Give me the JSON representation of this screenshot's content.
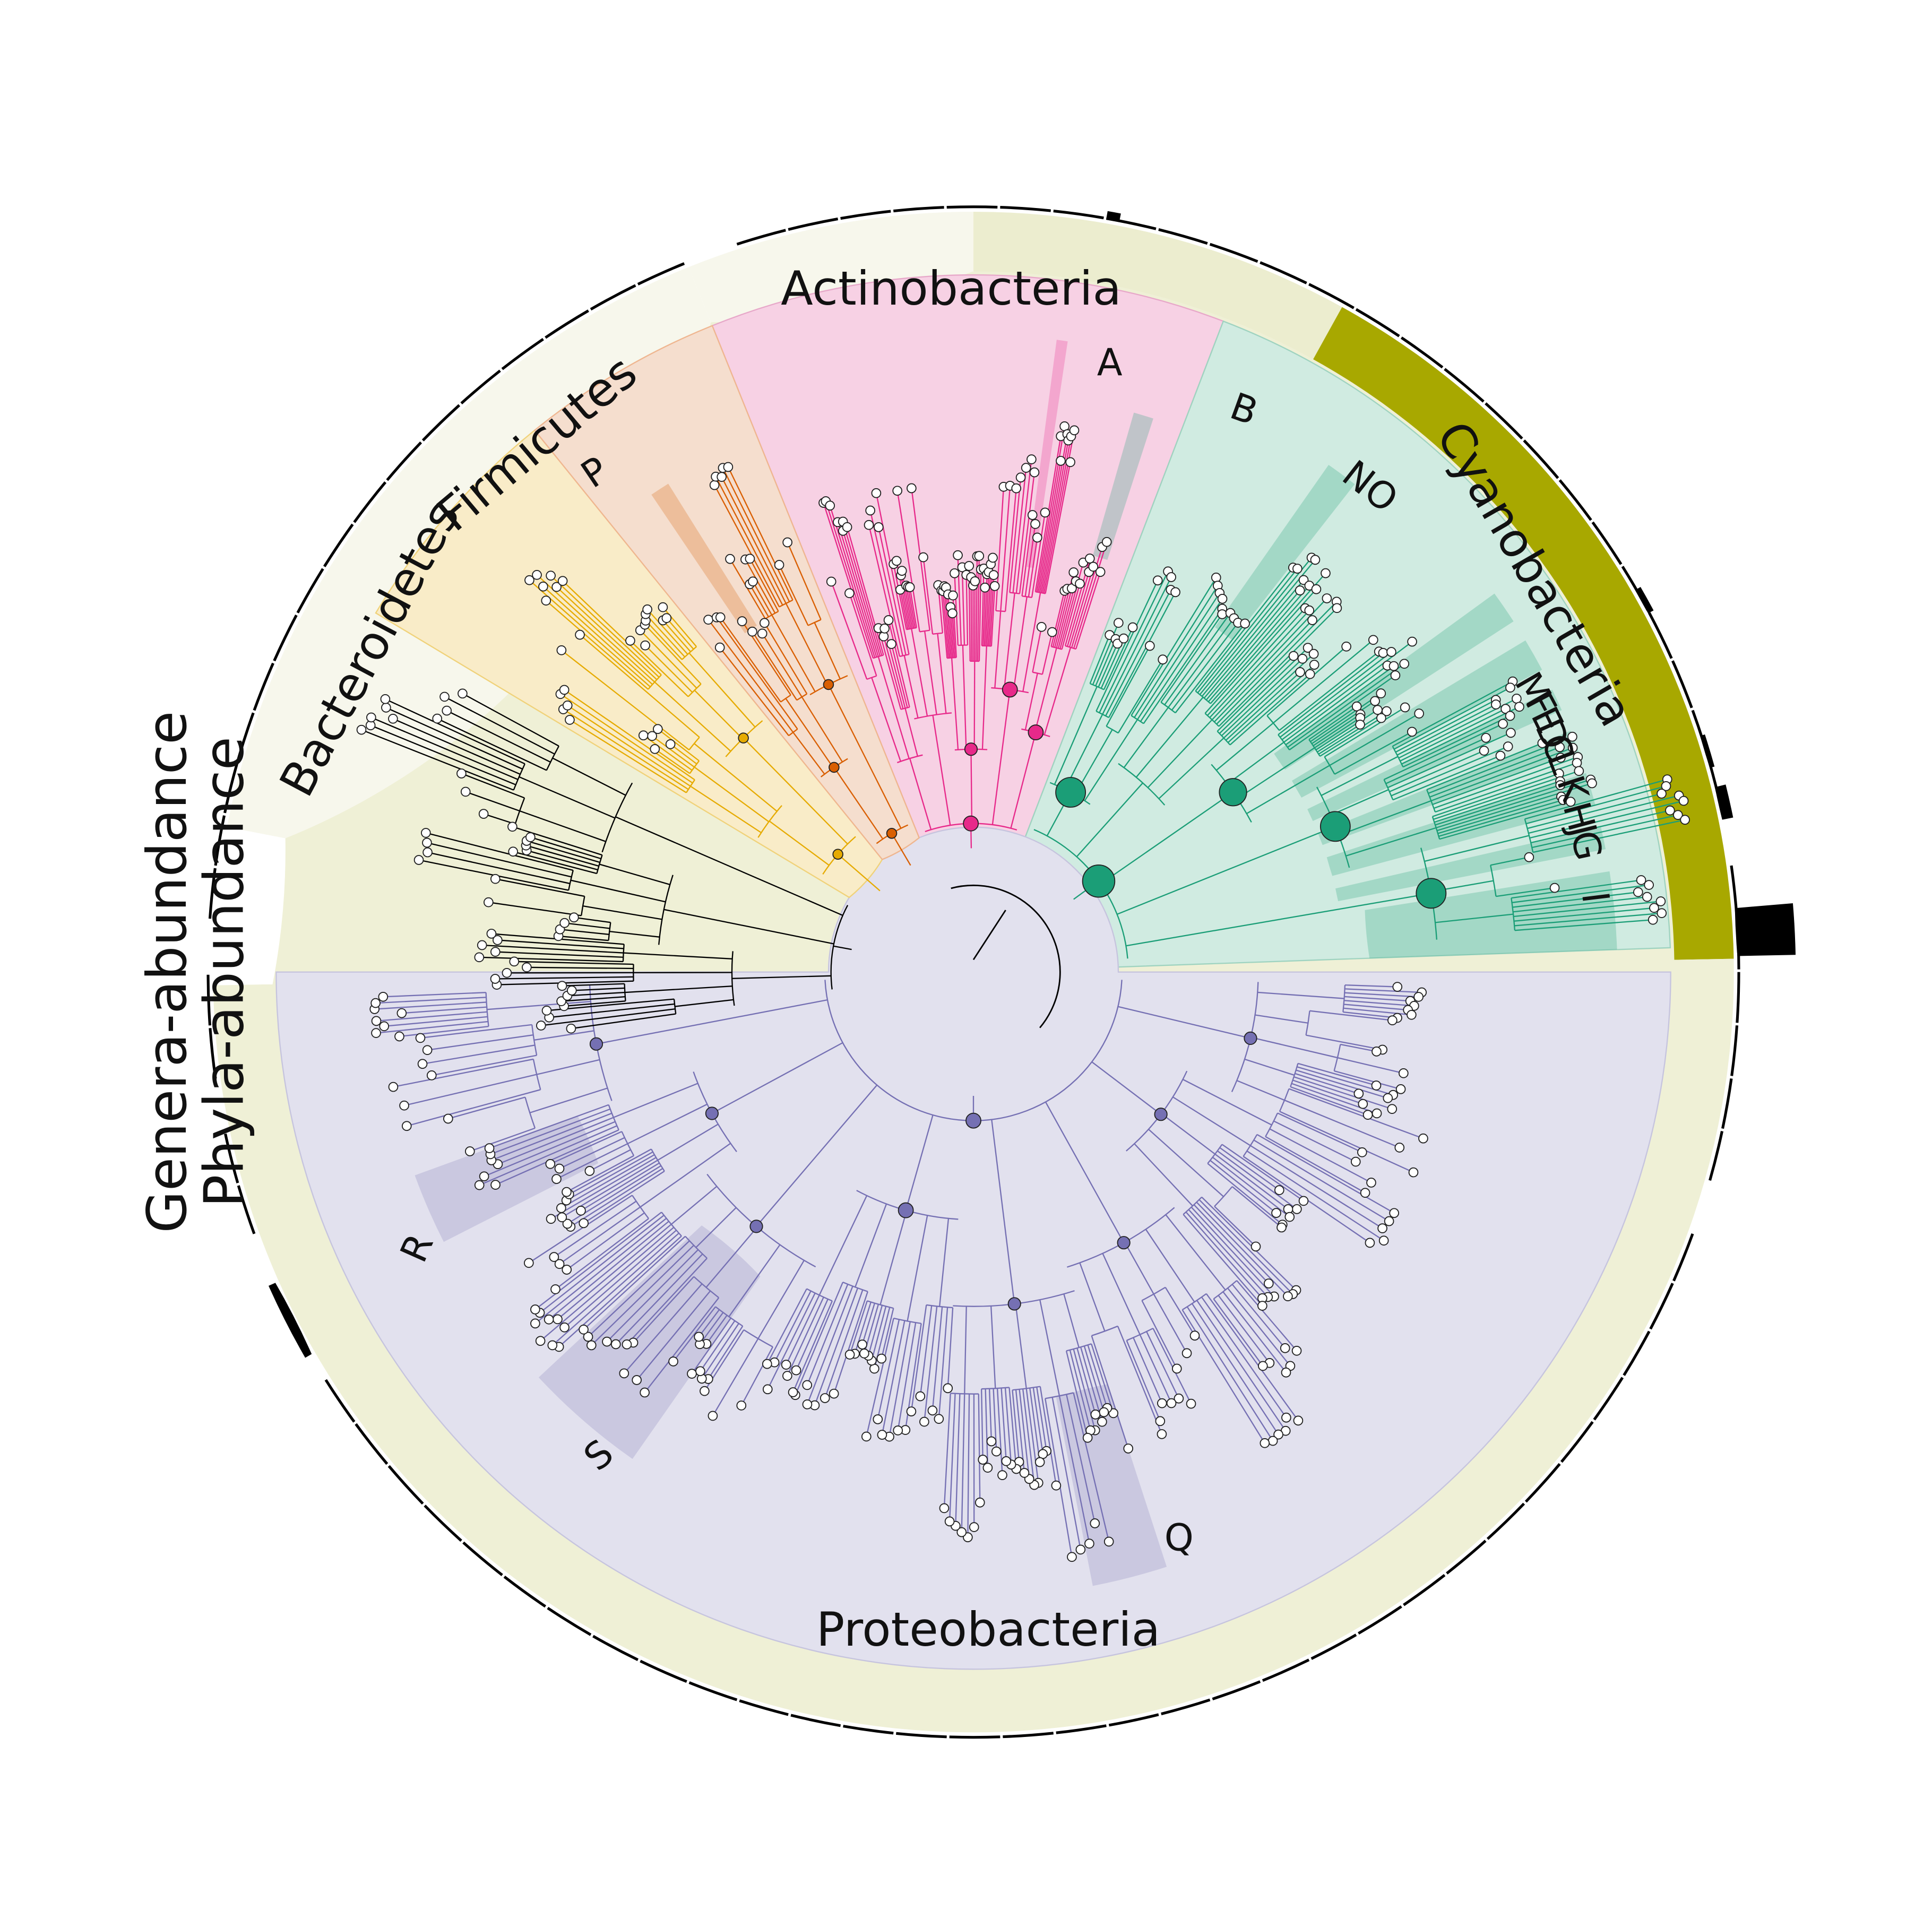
{
  "side_labels": {
    "genera": "Genera-abundance",
    "phyla": "Phyla-abundance"
  },
  "phyla": [
    {
      "name": "Actinobacteria",
      "color": "#e7298a",
      "fill": "#f7d1e4",
      "phyla_ring": "#ecedcf",
      "start": 292,
      "end": 382
    },
    {
      "name": "Cyanobacteria",
      "color": "#1b9e77",
      "fill": "#d0ebe1",
      "phyla_ring": "#a8a800",
      "start": 22,
      "end": 92
    },
    {
      "name": "Proteobacteria",
      "color": "#7570b3",
      "fill": "#e2e1ee",
      "phyla_ring": "#eff0d6",
      "start": 90.5,
      "end": 268.5
    },
    {
      "name": "Bacteroidetes",
      "color": "#e6ab02",
      "fill": "#f9ecc8",
      "phyla_ring": "#f7f7ec",
      "start": 205,
      "end": 223
    },
    {
      "name": "Firmicutes",
      "color": "#d95f02",
      "fill": "#f5dece",
      "phyla_ring": "#f7f7ec",
      "start": 223,
      "end": 252
    }
  ],
  "clade_letters": [
    "A",
    "B",
    "NO",
    "M",
    "F",
    "E",
    "D",
    "C",
    "L",
    "K",
    "H",
    "J",
    "G",
    "I",
    "P",
    "Q",
    "R",
    "S"
  ],
  "other_color": "#000000",
  "node_fill": "#ffffff"
}
